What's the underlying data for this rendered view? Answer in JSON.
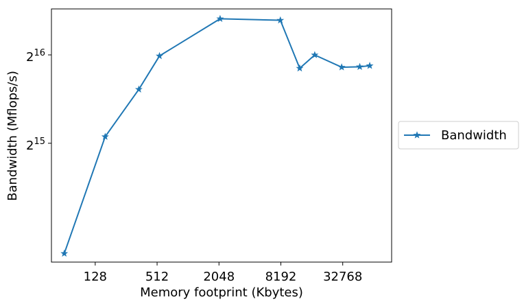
{
  "chart_data": {
    "type": "line",
    "title": "",
    "xlabel": "Memory footprint (Kbytes)",
    "ylabel": "Bandwidth (Mflops/s)",
    "x_scale": "log2",
    "y_scale": "log2",
    "xlim": [
      48,
      98000
    ],
    "ylim": [
      12900,
      94000
    ],
    "x_ticks": [
      {
        "value": 128,
        "label": "128"
      },
      {
        "value": 512,
        "label": "512"
      },
      {
        "value": 2048,
        "label": "2048"
      },
      {
        "value": 8192,
        "label": "8192"
      },
      {
        "value": 32768,
        "label": "32768"
      }
    ],
    "y_ticks": [
      {
        "value": 32768,
        "base": "2",
        "exp": "15"
      },
      {
        "value": 65536,
        "base": "2",
        "exp": "16"
      }
    ],
    "legend_position": "right",
    "series": [
      {
        "name": "Bandwidth",
        "color": "#1f77b4",
        "marker": "star",
        "x": [
          64,
          160,
          340,
          540,
          2100,
          8100,
          12500,
          17500,
          32000,
          48000,
          60000
        ],
        "y": [
          13800,
          34500,
          50000,
          65000,
          87000,
          86000,
          59000,
          65500,
          59500,
          59700,
          60200
        ]
      }
    ]
  }
}
